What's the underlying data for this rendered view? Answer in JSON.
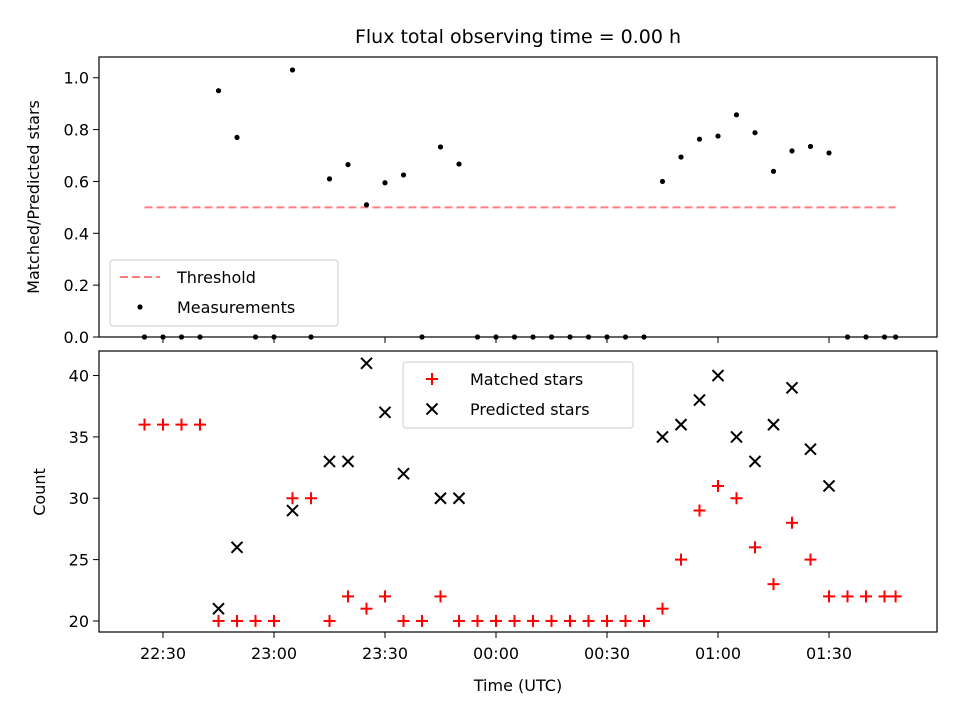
{
  "chart_data": [
    {
      "type": "scatter",
      "title": "Flux total observing time = 0.00 h",
      "ylabel": "Matched/Predicted stars",
      "xlabel": "",
      "x_ticks_shown_labels": false,
      "ylim": [
        0,
        1.08
      ],
      "yticks": [
        0.0,
        0.2,
        0.4,
        0.6,
        0.8,
        1.0
      ],
      "ytick_labels": [
        "0.0",
        "0.2",
        "0.4",
        "0.6",
        "0.8",
        "1.0"
      ],
      "legend": {
        "placement": "lower-left",
        "entries": [
          "Threshold",
          "Measurements"
        ]
      },
      "threshold": {
        "name": "Threshold",
        "value": 0.5,
        "x_start": "22:25",
        "x_end": "01:48",
        "color": "#ff7f7f",
        "style": "dashed"
      },
      "series": [
        {
          "name": "Measurements",
          "color": "#000000",
          "x": [
            "22:25",
            "22:30",
            "22:35",
            "22:40",
            "22:45",
            "22:50",
            "22:55",
            "23:00",
            "23:05",
            "23:10",
            "23:15",
            "23:20",
            "23:25",
            "23:30",
            "23:35",
            "23:40",
            "23:45",
            "23:50",
            "23:55",
            "00:00",
            "00:05",
            "00:10",
            "00:15",
            "00:20",
            "00:25",
            "00:30",
            "00:35",
            "00:40",
            "00:45",
            "00:50",
            "00:55",
            "01:00",
            "01:05",
            "01:10",
            "01:15",
            "01:20",
            "01:25",
            "01:30",
            "01:35",
            "01:40",
            "01:45",
            "01:48"
          ],
          "y": [
            0,
            0,
            0,
            0,
            0.95,
            0.77,
            0,
            0,
            1.03,
            0,
            0.61,
            0.665,
            0.51,
            0.595,
            0.625,
            0,
            0.733,
            0.667,
            0,
            0,
            0,
            0,
            0,
            0,
            0,
            0,
            0,
            0,
            0.6,
            0.694,
            0.763,
            0.775,
            0.857,
            0.788,
            0.639,
            0.718,
            0.735,
            0.71,
            0,
            0,
            0,
            0
          ]
        }
      ]
    },
    {
      "type": "scatter",
      "title": "",
      "ylabel": "Count",
      "xlabel": "Time (UTC)",
      "ylim": [
        19.1,
        42.0
      ],
      "yticks": [
        20,
        25,
        30,
        35,
        40
      ],
      "ytick_labels": [
        "20",
        "25",
        "30",
        "35",
        "40"
      ],
      "xticks": [
        "22:30",
        "23:00",
        "23:30",
        "00:00",
        "00:30",
        "01:00",
        "01:30"
      ],
      "legend": {
        "placement": "upper-center",
        "entries": [
          "Matched stars",
          "Predicted stars"
        ]
      },
      "series": [
        {
          "name": "Matched stars",
          "color": "#ff0000",
          "marker": "plus",
          "x": [
            "22:25",
            "22:30",
            "22:35",
            "22:40",
            "22:45",
            "22:50",
            "22:55",
            "23:00",
            "23:05",
            "23:10",
            "23:15",
            "23:20",
            "23:25",
            "23:30",
            "23:35",
            "23:40",
            "23:45",
            "23:50",
            "23:55",
            "00:00",
            "00:05",
            "00:10",
            "00:15",
            "00:20",
            "00:25",
            "00:30",
            "00:35",
            "00:40",
            "00:45",
            "00:50",
            "00:55",
            "01:00",
            "01:05",
            "01:10",
            "01:15",
            "01:20",
            "01:25",
            "01:30",
            "01:35",
            "01:40",
            "01:45",
            "01:48"
          ],
          "y": [
            36,
            36,
            36,
            36,
            20,
            20,
            20,
            20,
            30,
            30,
            20,
            22,
            21,
            22,
            20,
            20,
            22,
            20,
            20,
            20,
            20,
            20,
            20,
            20,
            20,
            20,
            20,
            20,
            21,
            25,
            29,
            31,
            30,
            26,
            23,
            28,
            25,
            22,
            22,
            22,
            22,
            22
          ]
        },
        {
          "name": "Predicted stars",
          "color": "#000000",
          "marker": "x",
          "x": [
            "22:45",
            "22:50",
            "23:05",
            "23:15",
            "23:20",
            "23:25",
            "23:30",
            "23:35",
            "23:45",
            "23:50",
            "00:45",
            "00:50",
            "00:55",
            "01:00",
            "01:05",
            "01:10",
            "01:15",
            "01:20",
            "01:25",
            "01:30"
          ],
          "y": [
            21,
            26,
            29,
            33,
            33,
            41,
            37,
            32,
            30,
            30,
            35,
            36,
            38,
            40,
            35,
            33,
            36,
            39,
            34,
            31
          ]
        }
      ]
    }
  ]
}
